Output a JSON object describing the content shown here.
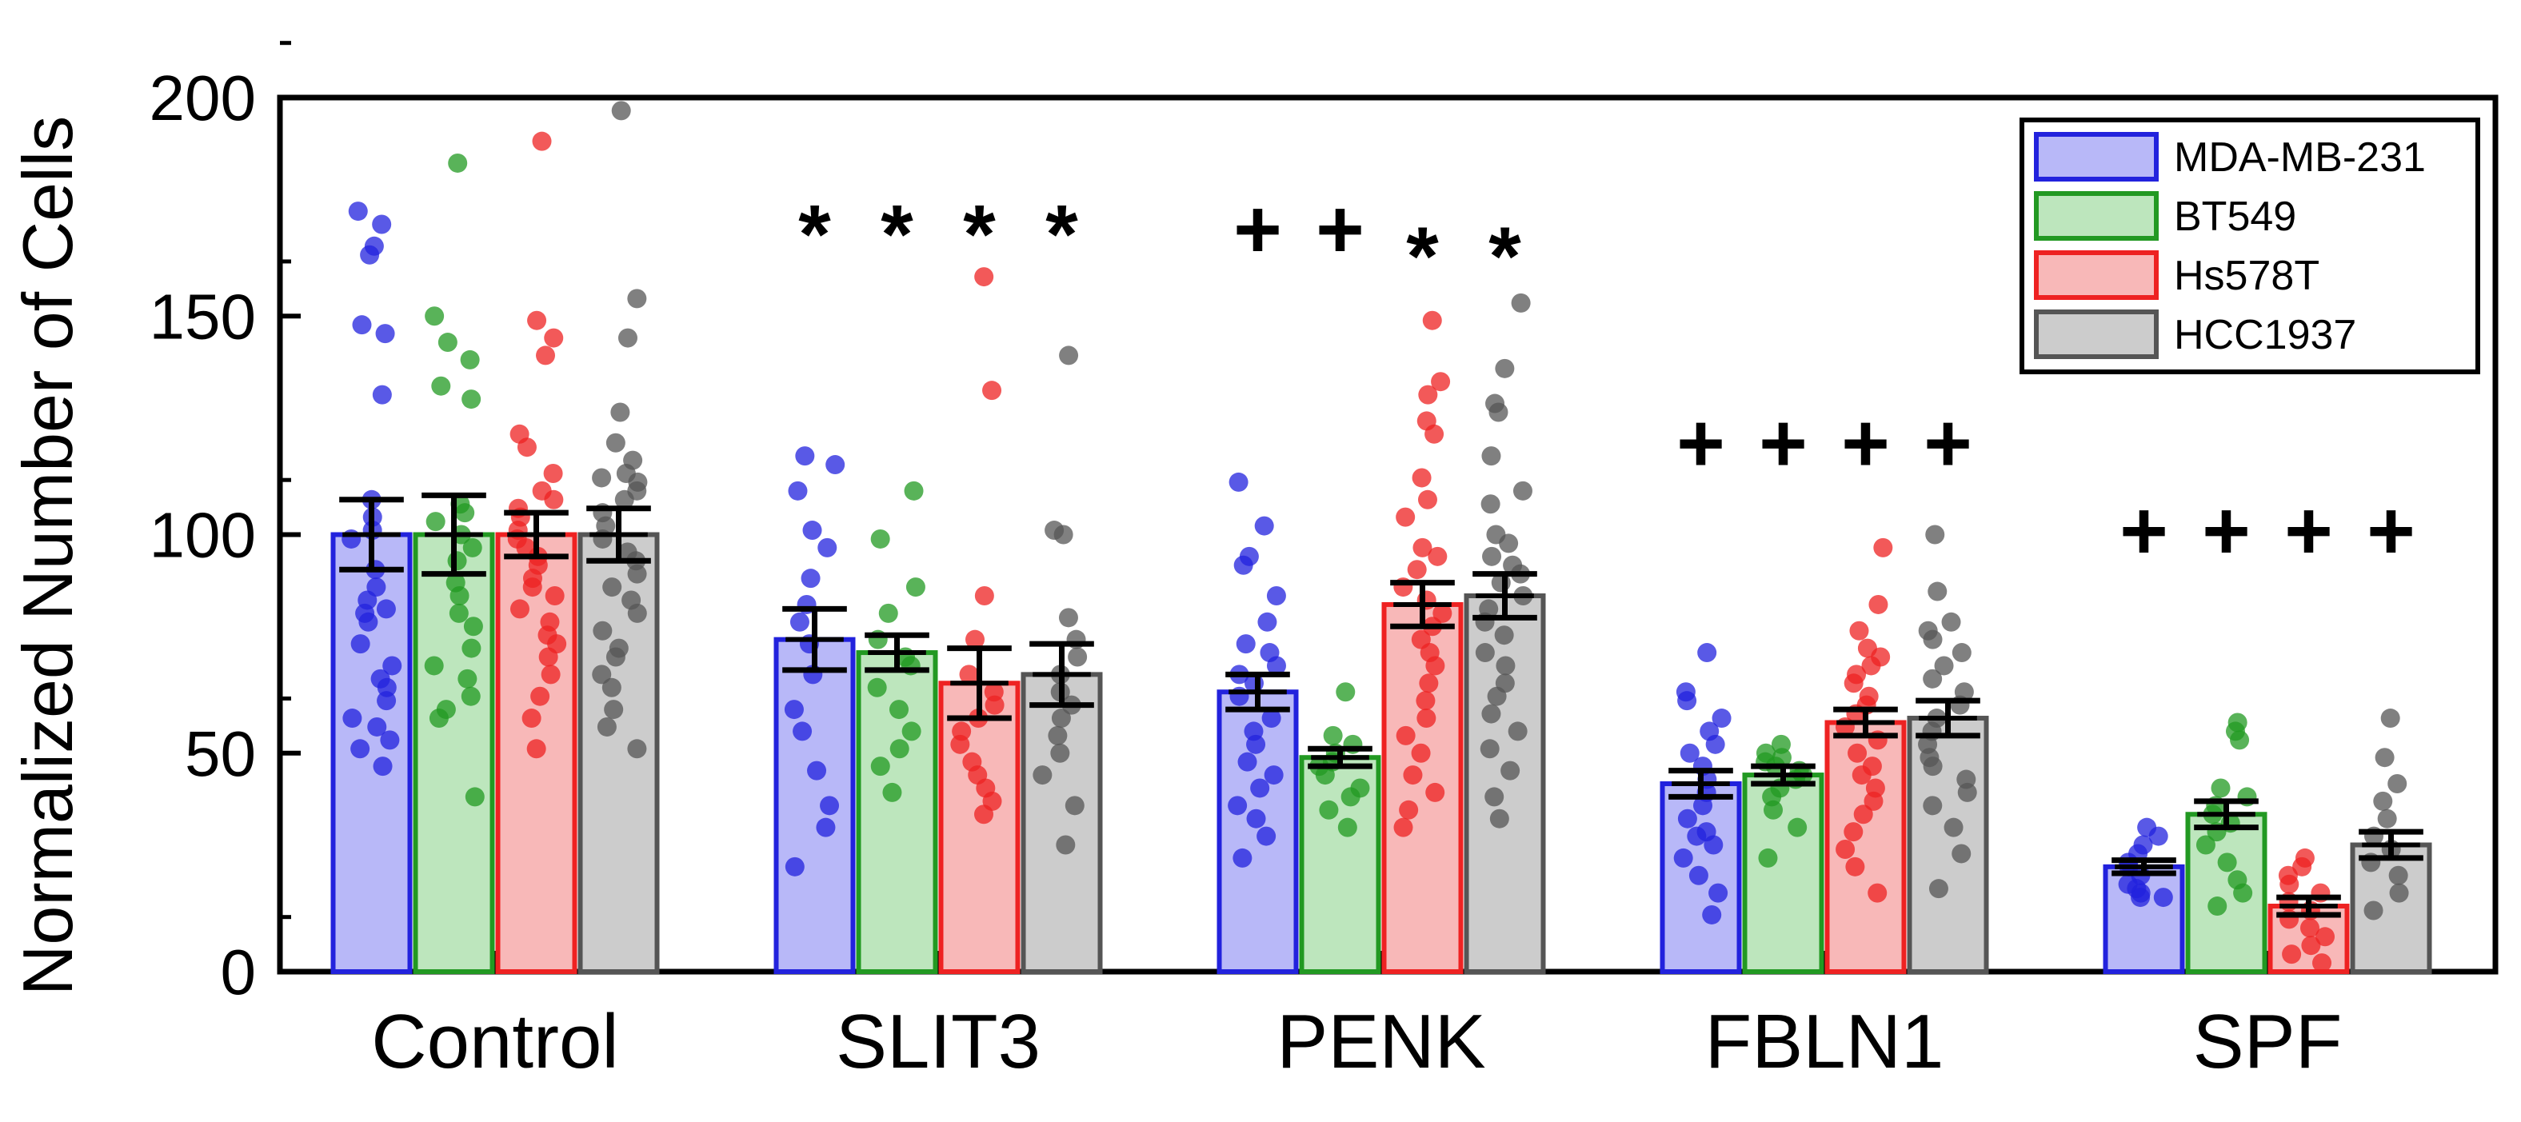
{
  "chart_data": {
    "type": "bar",
    "title": "",
    "xlabel": "",
    "ylabel": "Normalized Number of Cells",
    "ylim": [
      0,
      200
    ],
    "yticks": [
      0,
      50,
      100,
      150,
      200
    ],
    "grid": false,
    "legend_position": "top-right",
    "categories": [
      "Control",
      "SLIT3",
      "PENK",
      "FBLN1",
      "SPF"
    ],
    "series": [
      {
        "name": "MDA-MB-231",
        "color": "#2222dd",
        "fill": "#b8b8f8",
        "values": [
          100,
          76,
          64,
          43,
          24
        ],
        "errors": [
          8,
          7,
          4,
          3,
          1.5
        ],
        "points": [
          [
            174,
            171,
            166,
            164,
            148,
            146,
            132,
            108,
            104,
            101,
            99,
            92,
            88,
            85,
            83,
            82,
            80,
            75,
            70,
            67,
            65,
            62,
            58,
            56,
            53,
            51,
            47
          ],
          [
            118,
            116,
            110,
            101,
            97,
            90,
            84,
            80,
            75,
            68,
            60,
            55,
            46,
            38,
            33,
            24
          ],
          [
            112,
            102,
            95,
            93,
            86,
            80,
            75,
            73,
            70,
            68,
            66,
            63,
            58,
            55,
            52,
            48,
            45,
            42,
            38,
            35,
            31,
            26
          ],
          [
            73,
            64,
            62,
            58,
            55,
            52,
            50,
            47,
            44,
            41,
            38,
            35,
            32,
            31,
            29,
            26,
            22,
            18,
            13
          ],
          [
            33,
            31,
            29,
            27,
            25,
            24,
            22,
            20,
            19,
            18,
            17,
            17
          ]
        ]
      },
      {
        "name": "BT549",
        "color": "#229922",
        "fill": "#bde6bd",
        "values": [
          100,
          73,
          49,
          45,
          36
        ],
        "errors": [
          9,
          4,
          2,
          2,
          3
        ],
        "points": [
          [
            185,
            150,
            144,
            140,
            134,
            131,
            107,
            105,
            103,
            100,
            97,
            94,
            89,
            86,
            82,
            79,
            74,
            70,
            67,
            63,
            60,
            58,
            40
          ],
          [
            110,
            99,
            88,
            82,
            76,
            72,
            70,
            65,
            60,
            55,
            51,
            47,
            41
          ],
          [
            64,
            54,
            52,
            50,
            48,
            47,
            45,
            42,
            40,
            37,
            33
          ],
          [
            52,
            50,
            49,
            48,
            47,
            46,
            45,
            44,
            42,
            40,
            37,
            33,
            26
          ],
          [
            57,
            55,
            53,
            42,
            40,
            38,
            36,
            34,
            32,
            29,
            25,
            21,
            18,
            15
          ]
        ]
      },
      {
        "name": "Hs578T",
        "color": "#ee2222",
        "fill": "#f8b8b8",
        "values": [
          100,
          66,
          84,
          57,
          15
        ],
        "errors": [
          5,
          8,
          5,
          3,
          2
        ],
        "points": [
          [
            190,
            149,
            145,
            141,
            123,
            120,
            114,
            110,
            108,
            106,
            104,
            101,
            99,
            97,
            95,
            93,
            90,
            88,
            86,
            83,
            80,
            77,
            75,
            72,
            68,
            63,
            58,
            51
          ],
          [
            159,
            133,
            86,
            76,
            68,
            64,
            61,
            58,
            55,
            52,
            48,
            45,
            42,
            39,
            36
          ],
          [
            149,
            135,
            132,
            126,
            123,
            113,
            108,
            104,
            97,
            95,
            92,
            88,
            85,
            82,
            79,
            76,
            73,
            70,
            66,
            62,
            58,
            54,
            50,
            45,
            41,
            37,
            33
          ],
          [
            97,
            84,
            78,
            74,
            72,
            70,
            68,
            66,
            63,
            61,
            59,
            56,
            53,
            50,
            47,
            45,
            42,
            39,
            36,
            32,
            28,
            24,
            18
          ],
          [
            26,
            24,
            22,
            20,
            18,
            16,
            14,
            12,
            10,
            8,
            6,
            4,
            2
          ]
        ]
      },
      {
        "name": "HCC1937",
        "color": "#555555",
        "fill": "#cccccc",
        "values": [
          100,
          68,
          86,
          58,
          29
        ],
        "errors": [
          6,
          7,
          5,
          4,
          3
        ],
        "points": [
          [
            197,
            154,
            145,
            128,
            121,
            117,
            114,
            113,
            112,
            110,
            108,
            105,
            102,
            99,
            96,
            94,
            91,
            88,
            85,
            82,
            78,
            74,
            72,
            68,
            65,
            60,
            56,
            51
          ],
          [
            141,
            101,
            100,
            81,
            76,
            72,
            68,
            64,
            61,
            58,
            54,
            50,
            45,
            38,
            29
          ],
          [
            153,
            138,
            130,
            128,
            118,
            110,
            107,
            100,
            98,
            95,
            93,
            91,
            89,
            86,
            83,
            80,
            77,
            73,
            70,
            66,
            63,
            59,
            55,
            51,
            46,
            40,
            35
          ],
          [
            100,
            87,
            80,
            78,
            76,
            73,
            70,
            67,
            64,
            61,
            58,
            55,
            52,
            49,
            47,
            44,
            41,
            38,
            33,
            27,
            19
          ],
          [
            58,
            49,
            43,
            39,
            35,
            31,
            28,
            25,
            22,
            18,
            14
          ]
        ]
      }
    ],
    "annotations": [
      {
        "category": "SLIT3",
        "symbols": [
          "*",
          "*",
          "*",
          "*"
        ],
        "y": 175
      },
      {
        "category": "PENK",
        "symbols": [
          "+",
          "+",
          "*",
          "*"
        ],
        "y": 170
      },
      {
        "category": "FBLN1",
        "symbols": [
          "+",
          "+",
          "+",
          "+"
        ],
        "y": 121
      },
      {
        "category": "SPF",
        "symbols": [
          "+",
          "+",
          "+",
          "+"
        ],
        "y": 101
      }
    ]
  }
}
